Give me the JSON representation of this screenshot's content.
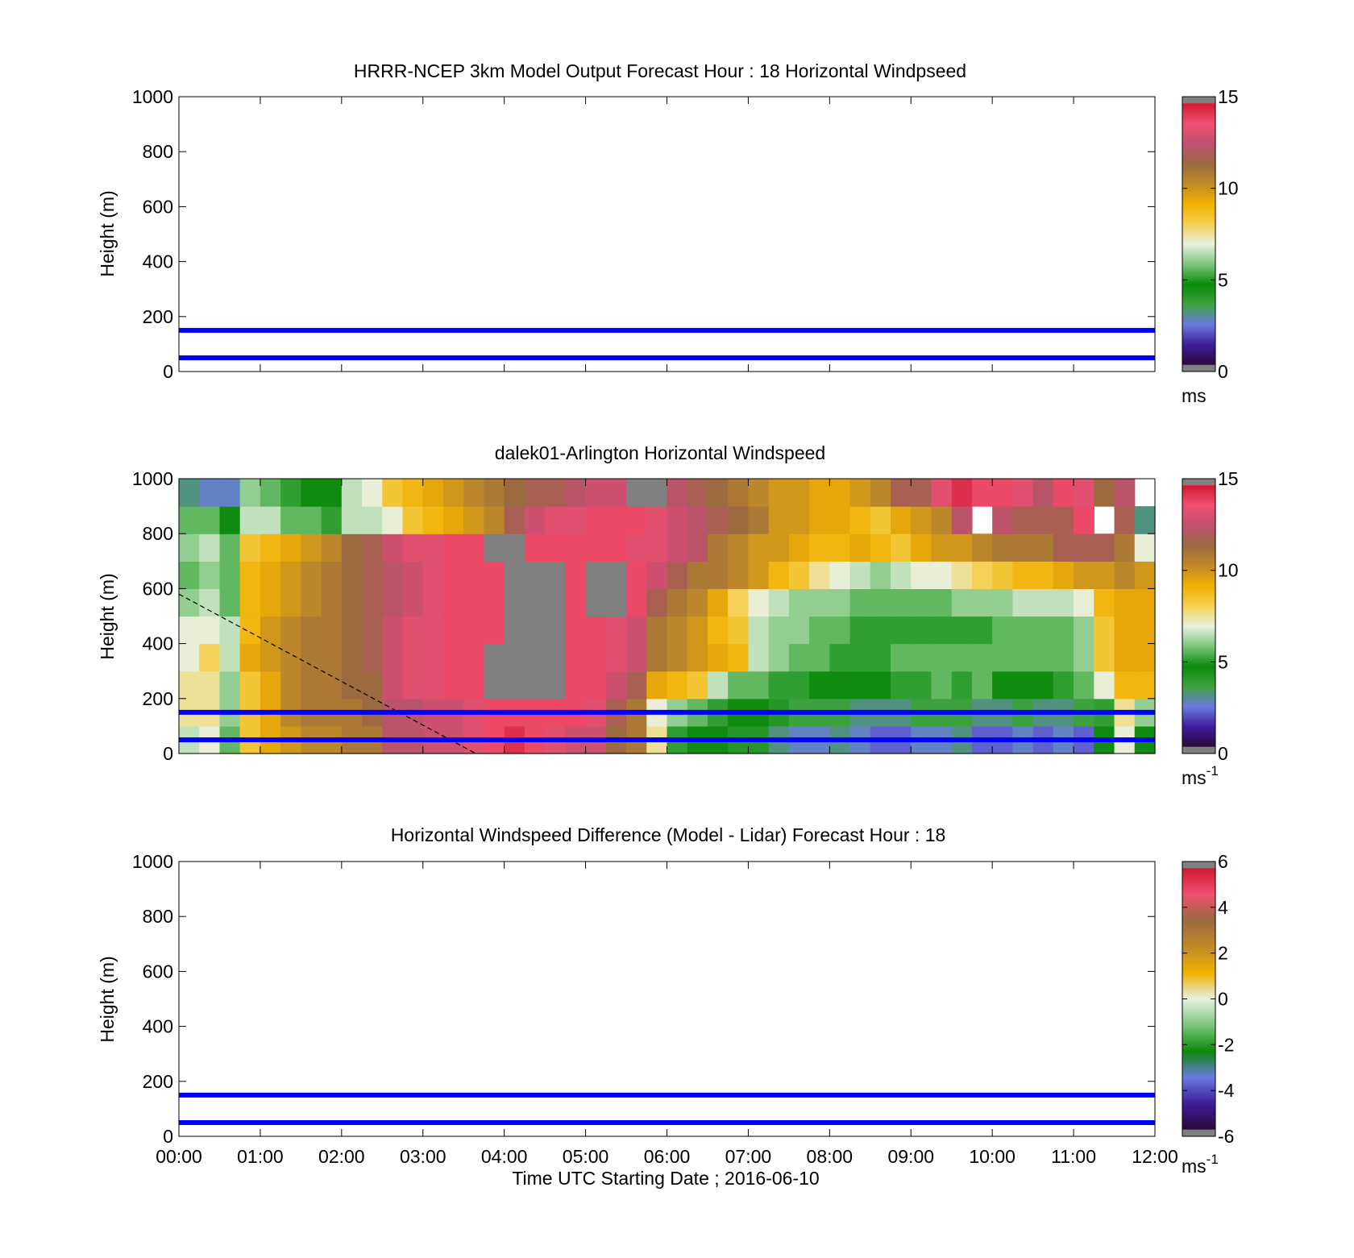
{
  "colors": {
    "guide_line": "#0000ff",
    "missing_data": "#808080",
    "frame": "#000000"
  },
  "speed_colormap": [
    "#2a0a3a",
    "#3d1d9a",
    "#6a7ae0",
    "#3fa23f",
    "#0a8a0a",
    "#7cc67c",
    "#e8f0e0",
    "#f5d050",
    "#f0b000",
    "#c08a28",
    "#9a6a40",
    "#c05070",
    "#f05070",
    "#d01830"
  ],
  "diff_colormap": [
    "#2a0a3a",
    "#3d1d9a",
    "#6a7ae0",
    "#0a8a0a",
    "#7cc67c",
    "#e8f0e0",
    "#f0b000",
    "#c08a28",
    "#9a6a40",
    "#f05070",
    "#d01830"
  ],
  "chart_data": [
    {
      "type": "heatmap",
      "title": "HRRR-NCEP 3km Model Output   Forecast Hour : 18 Horizontal Windpseed",
      "xlabel": "",
      "ylabel": "Height (m)",
      "xlim": [
        0,
        12
      ],
      "ylim": [
        0,
        1000
      ],
      "yticks": [
        "0",
        "200",
        "400",
        "600",
        "800",
        "1000"
      ],
      "xticks_hours": [
        0,
        1,
        2,
        3,
        4,
        5,
        6,
        7,
        8,
        9,
        10,
        11,
        12
      ],
      "xtick_labels": [],
      "guide_lines_m": [
        50,
        150
      ],
      "colorbar": {
        "ticks": [
          "0",
          "5",
          "10",
          "15"
        ],
        "tick_values": [
          0,
          5,
          10,
          15
        ],
        "range": [
          0,
          15
        ],
        "unit": "ms",
        "unit_sup": ""
      },
      "values": []
    },
    {
      "type": "heatmap",
      "title": "dalek01-Arlington  Horizontal Windspeed",
      "xlabel": "",
      "ylabel": "Height (m)",
      "xlim": [
        0,
        12
      ],
      "ylim": [
        0,
        1000
      ],
      "yticks": [
        "0",
        "200",
        "400",
        "600",
        "800",
        "1000"
      ],
      "xticks_hours": [
        0,
        1,
        2,
        3,
        4,
        5,
        6,
        7,
        8,
        9,
        10,
        11,
        12
      ],
      "xtick_labels": [],
      "guide_lines_m": [
        50,
        150
      ],
      "dashed_line": [
        [
          0,
          580
        ],
        [
          3.65,
          0
        ]
      ],
      "colorbar": {
        "ticks": [
          "0",
          "5",
          "10",
          "15"
        ],
        "tick_values": [
          0,
          5,
          10,
          15
        ],
        "range": [
          0,
          15
        ],
        "unit": "ms",
        "unit_sup": "-1"
      },
      "grid": {
        "time_start_h": 0,
        "time_step_h": 0.25,
        "height_start_m": 0,
        "height_step_m": 100,
        "missing": "null = white (no data), -1 = gray (out of range)",
        "values": [
          [
            6.5,
            7.0,
            5.5,
            8.5,
            9.5,
            10.0,
            10.5,
            10.5,
            11.0,
            11.0,
            12.5,
            12.5,
            13.0,
            13.0,
            13.5,
            14.0,
            14.5,
            14.0,
            13.5,
            13.0,
            13.0,
            11.5,
            11.0,
            7.5,
            5.0,
            4.5,
            4.5,
            4.0,
            4.0,
            3.0,
            2.5,
            2.5,
            3.0,
            2.5,
            2.0,
            2.0,
            2.5,
            2.5,
            3.0,
            2.0,
            2.0,
            2.5,
            2.0,
            2.5,
            2.0,
            4.5,
            7.0,
            4.5
          ],
          [
            7.5,
            7.5,
            6.0,
            8.5,
            9.5,
            10.5,
            11.0,
            11.0,
            11.0,
            11.5,
            12.5,
            12.5,
            13.0,
            13.0,
            13.5,
            14.0,
            14.0,
            14.0,
            14.0,
            14.0,
            13.5,
            12.0,
            11.0,
            7.0,
            6.0,
            5.5,
            5.0,
            4.5,
            4.5,
            4.0,
            3.5,
            3.5,
            3.5,
            3.0,
            3.0,
            3.0,
            3.5,
            3.5,
            3.5,
            3.0,
            3.0,
            3.5,
            3.0,
            3.0,
            3.5,
            5.0,
            7.5,
            6.0
          ],
          [
            7.5,
            7.5,
            6.0,
            8.5,
            9.5,
            10.5,
            11.0,
            11.0,
            11.5,
            11.5,
            13.0,
            13.5,
            13.5,
            14.0,
            14.0,
            -1,
            -1,
            -1,
            -1,
            14.0,
            14.0,
            13.0,
            12.0,
            9.5,
            9.0,
            8.5,
            6.5,
            5.5,
            5.5,
            5.0,
            5.0,
            4.5,
            4.5,
            4.5,
            4.5,
            5.0,
            5.0,
            5.5,
            5.0,
            5.5,
            4.5,
            4.5,
            4.5,
            5.0,
            5.5,
            7.0,
            9.0,
            9.0
          ],
          [
            7.0,
            8.0,
            6.5,
            9.5,
            10.0,
            10.5,
            11.0,
            11.0,
            11.5,
            12.0,
            13.0,
            13.5,
            13.5,
            14.0,
            14.0,
            -1,
            -1,
            -1,
            -1,
            14.0,
            14.0,
            13.5,
            13.0,
            11.0,
            10.5,
            10.0,
            9.5,
            9.0,
            6.5,
            6.0,
            5.5,
            5.5,
            5.0,
            5.0,
            5.0,
            5.5,
            5.5,
            5.5,
            5.5,
            5.5,
            5.5,
            5.5,
            5.5,
            5.5,
            6.0,
            8.5,
            9.5,
            9.5
          ],
          [
            7.0,
            7.0,
            6.5,
            9.0,
            10.0,
            10.5,
            11.0,
            11.0,
            11.5,
            12.0,
            13.0,
            13.5,
            13.5,
            14.0,
            14.0,
            14.0,
            -1,
            -1,
            -1,
            14.0,
            14.0,
            13.5,
            13.0,
            11.0,
            10.5,
            10.0,
            9.0,
            8.5,
            6.5,
            6.0,
            6.0,
            5.5,
            5.5,
            5.0,
            5.0,
            5.0,
            5.0,
            5.0,
            5.0,
            5.0,
            5.5,
            5.5,
            5.5,
            5.5,
            6.0,
            8.5,
            9.5,
            9.5
          ],
          [
            6.0,
            6.5,
            5.5,
            9.0,
            9.5,
            10.0,
            10.5,
            11.0,
            11.5,
            12.0,
            12.5,
            13.0,
            13.5,
            14.0,
            14.0,
            14.0,
            -1,
            -1,
            -1,
            14.0,
            -1,
            -1,
            14.0,
            12.0,
            11.0,
            10.5,
            9.5,
            8.0,
            7.0,
            6.5,
            6.0,
            6.0,
            6.0,
            5.5,
            5.5,
            5.5,
            5.5,
            5.5,
            6.0,
            6.0,
            6.0,
            6.5,
            6.5,
            6.5,
            7.0,
            9.0,
            9.5,
            9.5
          ],
          [
            5.5,
            6.0,
            5.5,
            9.0,
            9.5,
            10.0,
            10.5,
            11.0,
            11.5,
            12.0,
            12.5,
            13.0,
            13.5,
            14.0,
            14.0,
            14.0,
            -1,
            -1,
            -1,
            14.0,
            -1,
            -1,
            14.0,
            13.0,
            12.0,
            11.0,
            11.0,
            10.5,
            10.0,
            9.0,
            8.5,
            7.5,
            7.0,
            6.5,
            6.0,
            6.5,
            7.0,
            7.0,
            7.5,
            8.0,
            8.5,
            9.0,
            9.0,
            9.5,
            10.0,
            10.0,
            10.5,
            10.0
          ],
          [
            6.0,
            6.5,
            5.5,
            8.5,
            9.0,
            9.5,
            10.0,
            10.5,
            11.5,
            12.0,
            13.0,
            13.5,
            13.5,
            14.0,
            14.0,
            -1,
            -1,
            14.0,
            14.0,
            14.0,
            14.0,
            14.0,
            13.5,
            13.5,
            13.0,
            12.5,
            11.0,
            10.5,
            10.0,
            10.0,
            9.5,
            9.0,
            9.0,
            9.5,
            9.0,
            8.5,
            9.5,
            10.0,
            10.0,
            10.5,
            11.0,
            11.0,
            11.0,
            12.0,
            12.0,
            12.0,
            11.0,
            7.0
          ],
          [
            5.5,
            5.5,
            4.5,
            6.5,
            6.5,
            5.5,
            5.5,
            5.0,
            6.5,
            6.5,
            7.0,
            8.5,
            9.0,
            9.5,
            10.0,
            10.5,
            12.0,
            13.0,
            13.5,
            13.5,
            14.0,
            14.0,
            14.0,
            13.5,
            13.0,
            12.5,
            12.0,
            11.5,
            11.0,
            10.0,
            10.0,
            9.5,
            9.5,
            9.0,
            8.5,
            9.5,
            10.0,
            10.5,
            12.5,
            null,
            12.5,
            12.0,
            12.0,
            12.0,
            14.0,
            null,
            12.0,
            3.0
          ],
          [
            3.0,
            2.5,
            2.5,
            6.0,
            5.5,
            5.0,
            4.5,
            4.5,
            6.5,
            7.0,
            8.5,
            9.0,
            9.5,
            10.0,
            10.5,
            11.0,
            11.5,
            12.0,
            12.0,
            12.5,
            13.0,
            13.0,
            -1,
            -1,
            12.5,
            12.0,
            11.5,
            11.0,
            10.5,
            10.0,
            10.0,
            9.5,
            9.5,
            10.0,
            10.5,
            12.0,
            12.0,
            13.5,
            14.5,
            14.0,
            14.0,
            13.5,
            12.5,
            14.0,
            13.5,
            11.5,
            12.5,
            null
          ]
        ]
      }
    },
    {
      "type": "heatmap",
      "title": "Horizontal Windspeed Difference (Model - Lidar) Forecast Hour : 18",
      "xlabel": "Time UTC  Starting Date ; 2016-06-10",
      "ylabel": "Height (m)",
      "xlim": [
        0,
        12
      ],
      "ylim": [
        0,
        1000
      ],
      "yticks": [
        "0",
        "200",
        "400",
        "600",
        "800",
        "1000"
      ],
      "xticks_hours": [
        0,
        1,
        2,
        3,
        4,
        5,
        6,
        7,
        8,
        9,
        10,
        11,
        12
      ],
      "xtick_labels": [
        "00:00",
        "01:00",
        "02:00",
        "03:00",
        "04:00",
        "05:00",
        "06:00",
        "07:00",
        "08:00",
        "09:00",
        "10:00",
        "11:00",
        "12:00"
      ],
      "guide_lines_m": [
        50,
        150
      ],
      "colorbar": {
        "ticks": [
          "-6",
          "-4",
          "-2",
          "0",
          "2",
          "4",
          "6"
        ],
        "tick_values": [
          -6,
          -4,
          -2,
          0,
          2,
          4,
          6
        ],
        "range": [
          -6,
          6
        ],
        "unit": "ms",
        "unit_sup": "-1"
      },
      "values": []
    }
  ]
}
